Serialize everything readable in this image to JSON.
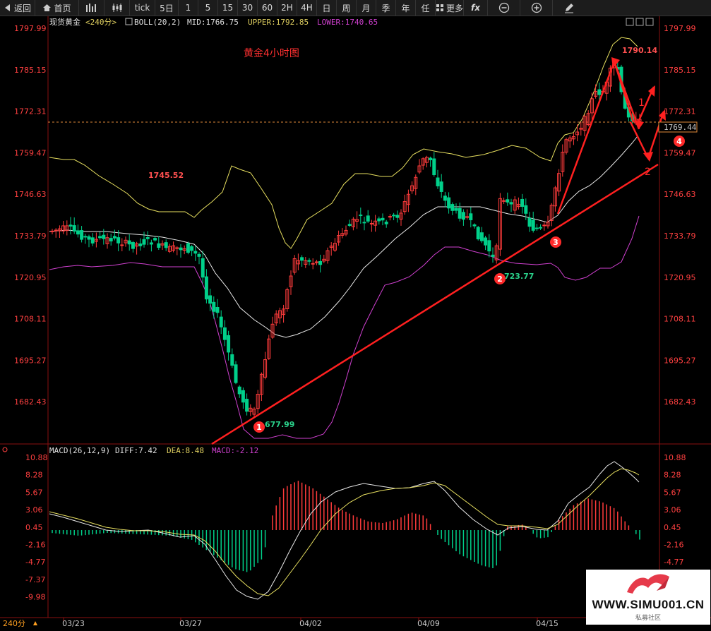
{
  "toolbar": {
    "back": "返回",
    "home": "首页",
    "tick": "tick",
    "periods": [
      "5日",
      "1",
      "5",
      "15",
      "30",
      "60",
      "2H",
      "4H",
      "日",
      "周",
      "月",
      "季",
      "年",
      "任"
    ],
    "more": "更多",
    "fx": "fx"
  },
  "header": {
    "symbol": "现货黄金",
    "period": "<240分>",
    "boll_name": "BOLL(20,2)",
    "mid": "MID:1766.75",
    "upper": "UPPER:1792.85",
    "lower": "LOWER:1740.65"
  },
  "annotation_title": "黄金4小时图",
  "price_axis": [
    "1797.99",
    "1785.15",
    "1772.31",
    "1759.47",
    "1746.63",
    "1733.79",
    "1720.95",
    "1708.11",
    "1695.27",
    "1682.43"
  ],
  "current_price": "1769.44",
  "labels": {
    "high1": "1745.52",
    "high2": "1790.14",
    "low1": "677.99",
    "low2": "723.77",
    "wave1": "1",
    "wave2": "2"
  },
  "markers": [
    "1",
    "2",
    "3",
    "4"
  ],
  "macd_header": {
    "name": "MACD(26,12,9)",
    "diff": "DIFF:7.42",
    "dea": "DEA:8.48",
    "macd": "MACD:-2.12"
  },
  "macd_axis": [
    "10.88",
    "8.28",
    "5.67",
    "3.06",
    "0.45",
    "-2.16",
    "-4.77",
    "-7.37",
    "-9.98"
  ],
  "date_axis": [
    "03/23",
    "03/27",
    "04/02",
    "04/09",
    "04/15"
  ],
  "period_footer": "240分",
  "watermark": {
    "text": "WWW.SIMU001.CN",
    "sub": "私募社区"
  },
  "colors": {
    "up": "#ff3b3b",
    "down": "#00d08a",
    "mid": "#e8e8e8",
    "upper": "#e8e060",
    "lower": "#d040d0",
    "trend": "#ff2020",
    "axis": "#ff4040"
  }
}
